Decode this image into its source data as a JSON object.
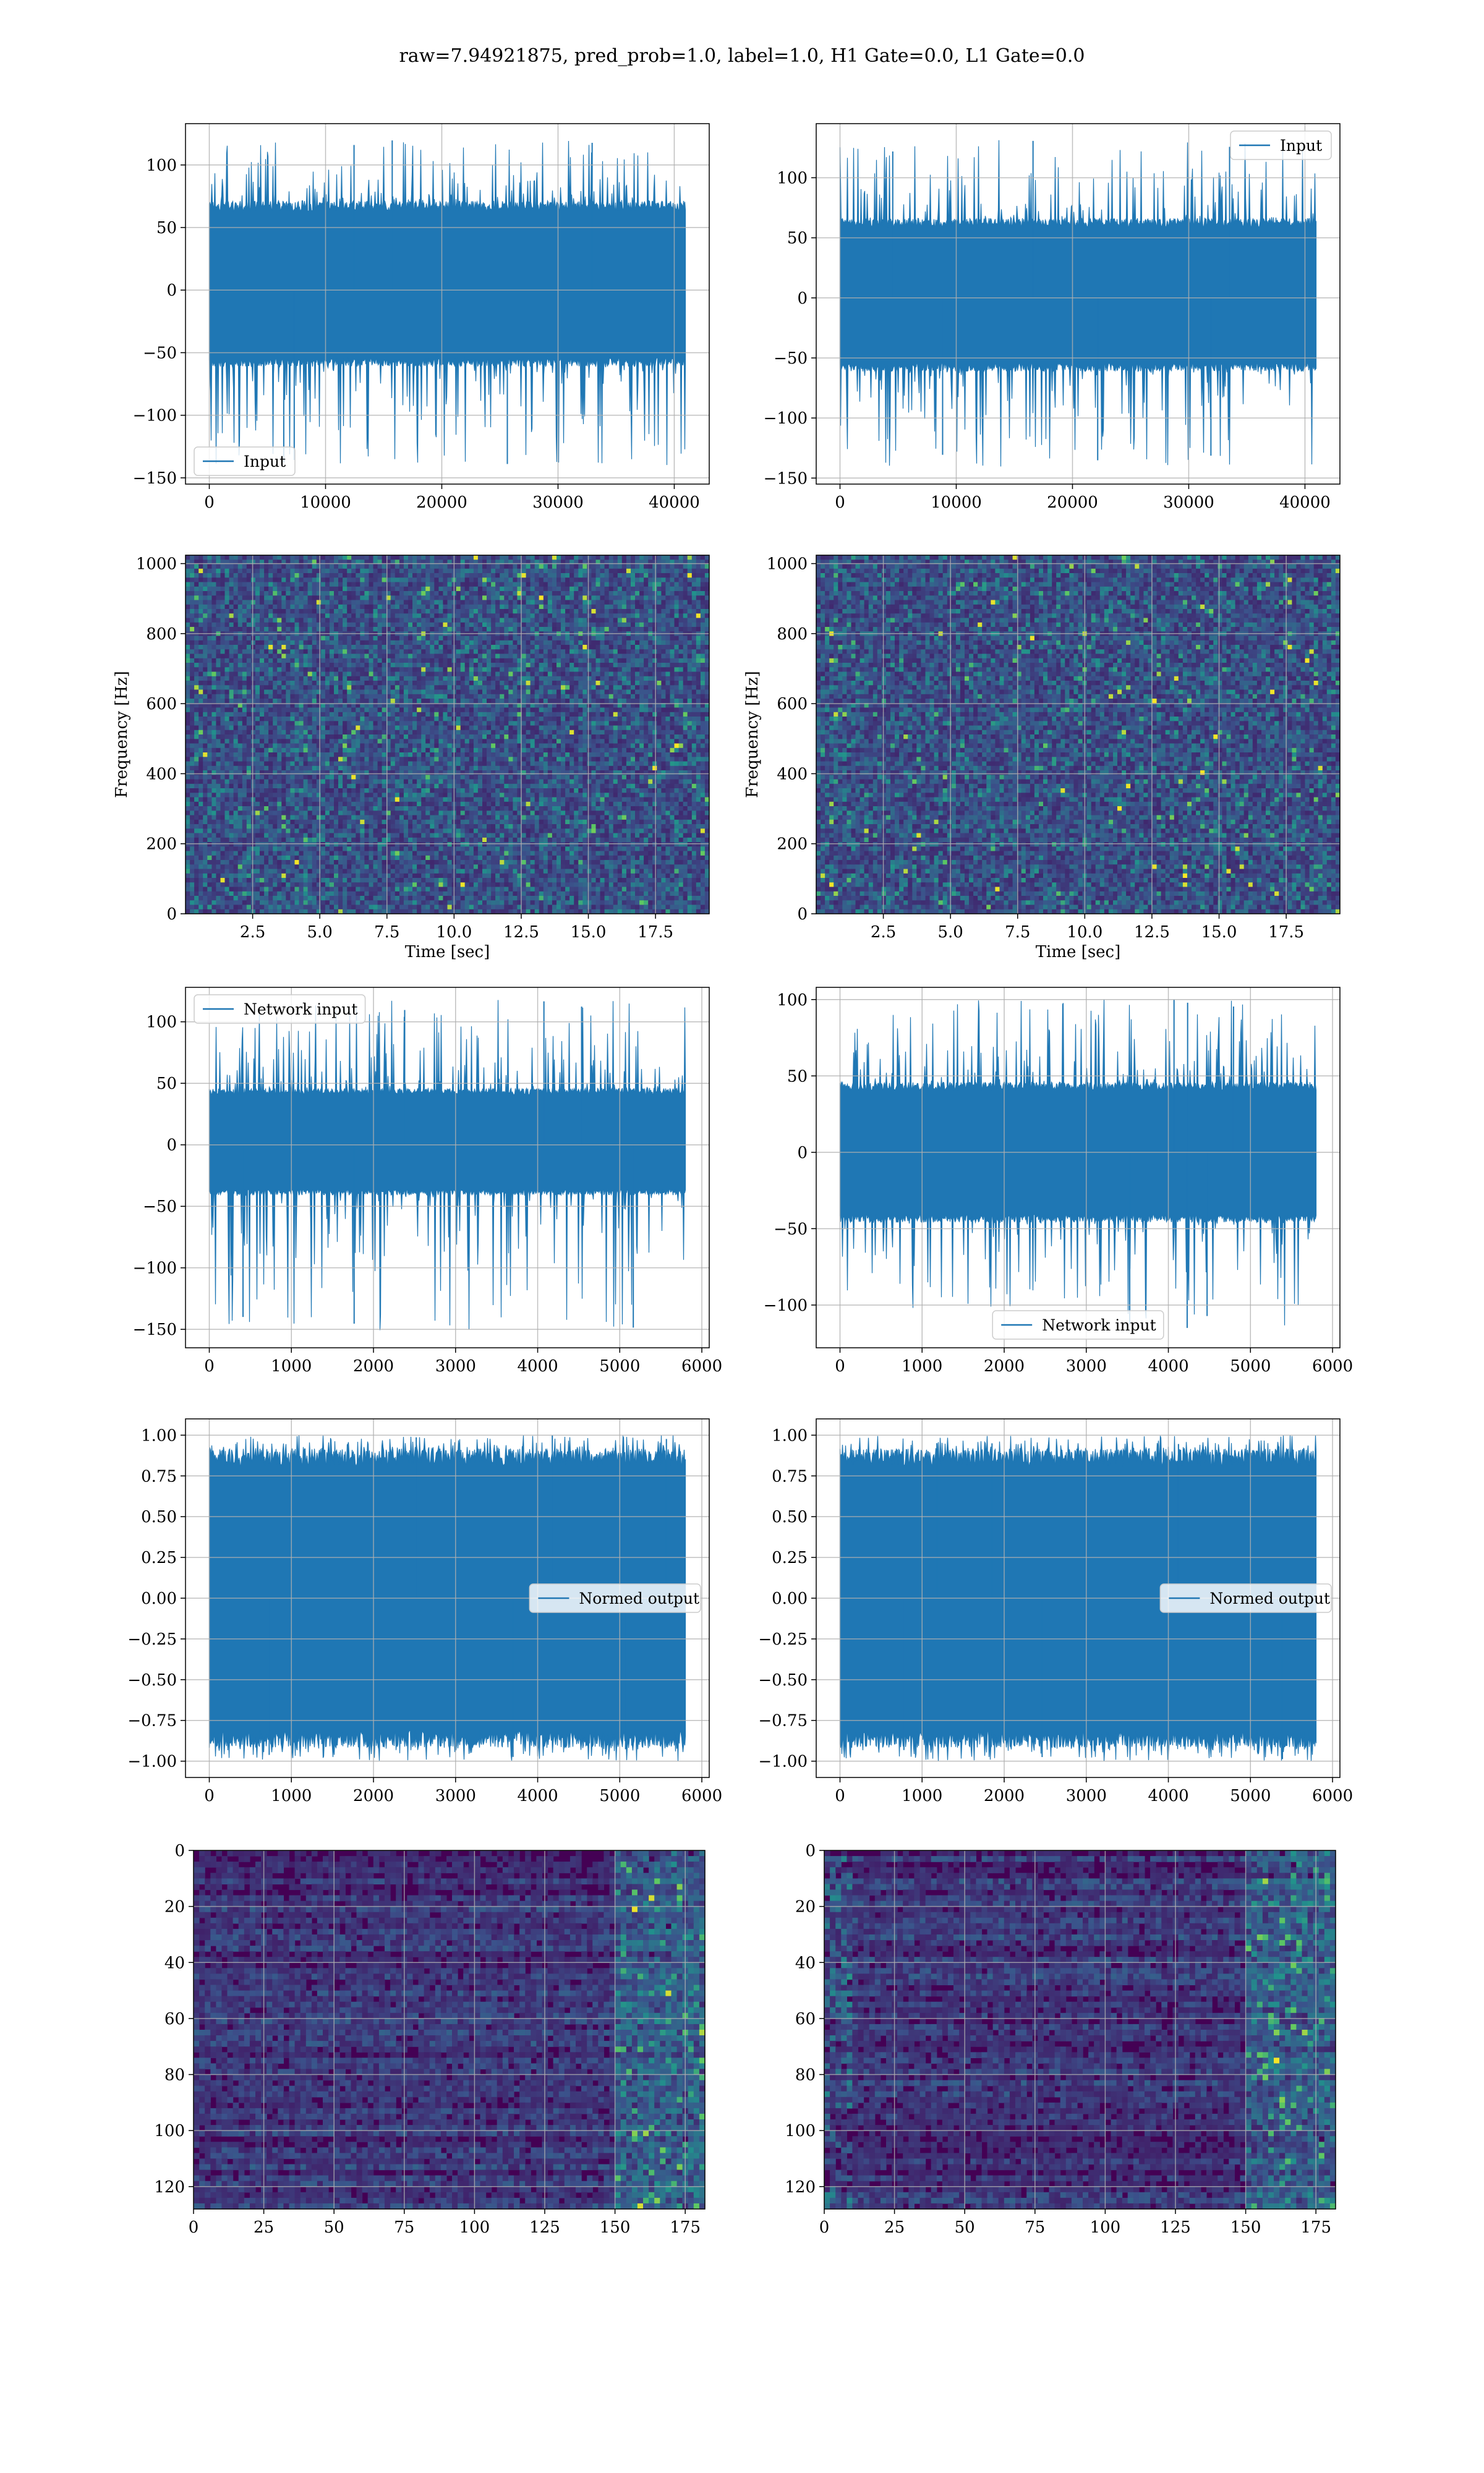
{
  "figure_title": "raw=7.94921875, pred_prob=1.0, label=1.0, H1 Gate=0.0, L1 Gate=0.0",
  "colors": {
    "line": "#1f77b4",
    "grid": "#b0b0b0",
    "viridis_dark": "#440154",
    "viridis_mid": "#3b528b",
    "viridis_teal": "#21918c",
    "viridis_green": "#5ec962",
    "viridis_yellow": "#fde725"
  },
  "chart_data": [
    {
      "id": "p00",
      "type": "line",
      "series": [
        {
          "name": "Input",
          "n": 40960,
          "y_envelope": [
            -140,
            120
          ],
          "y_typical": [
            -60,
            70
          ]
        }
      ],
      "xlim": [
        -2048,
        43008
      ],
      "ylim": [
        -155,
        133
      ],
      "xticks": [
        0,
        10000,
        20000,
        30000,
        40000
      ],
      "yticks": [
        -150,
        -100,
        -50,
        0,
        50,
        100
      ],
      "legend": "lower left",
      "grid": true
    },
    {
      "id": "p01",
      "type": "line",
      "series": [
        {
          "name": "Input",
          "n": 40960,
          "y_envelope": [
            -141,
            132
          ],
          "y_typical": [
            -60,
            65
          ]
        }
      ],
      "xlim": [
        -2048,
        43008
      ],
      "ylim": [
        -155,
        145
      ],
      "xticks": [
        0,
        10000,
        20000,
        30000,
        40000
      ],
      "yticks": [
        -150,
        -100,
        -50,
        0,
        50,
        100
      ],
      "legend": "upper right",
      "grid": true
    },
    {
      "id": "p10",
      "type": "heatmap",
      "xlabel": "Time [sec]",
      "ylabel": "Frequency [Hz]",
      "xlim": [
        0,
        19.5
      ],
      "ylim": [
        0,
        1024
      ],
      "xticks": [
        2.5,
        5.0,
        7.5,
        10.0,
        12.5,
        15.0,
        17.5
      ],
      "yticks": [
        0,
        200,
        400,
        600,
        800,
        1000
      ],
      "colormap": "viridis",
      "grid": true
    },
    {
      "id": "p11",
      "type": "heatmap",
      "xlabel": "Time [sec]",
      "ylabel": "Frequency [Hz]",
      "xlim": [
        0,
        19.5
      ],
      "ylim": [
        0,
        1024
      ],
      "xticks": [
        2.5,
        5.0,
        7.5,
        10.0,
        12.5,
        15.0,
        17.5
      ],
      "yticks": [
        0,
        200,
        400,
        600,
        800,
        1000
      ],
      "colormap": "viridis",
      "grid": true
    },
    {
      "id": "p20",
      "type": "line",
      "series": [
        {
          "name": "Network input",
          "n": 5800,
          "y_envelope": [
            -152,
            118
          ],
          "y_typical": [
            -40,
            45
          ]
        }
      ],
      "xlim": [
        -290,
        6090
      ],
      "ylim": [
        -165,
        128
      ],
      "xticks": [
        0,
        1000,
        2000,
        3000,
        4000,
        5000,
        6000
      ],
      "yticks": [
        -150,
        -100,
        -50,
        0,
        50,
        100
      ],
      "legend": "upper left",
      "grid": true
    },
    {
      "id": "p21",
      "type": "line",
      "series": [
        {
          "name": "Network input",
          "n": 5800,
          "y_envelope": [
            -115,
            100
          ],
          "y_typical": [
            -45,
            45
          ]
        }
      ],
      "xlim": [
        -290,
        6090
      ],
      "ylim": [
        -128,
        108
      ],
      "xticks": [
        0,
        1000,
        2000,
        3000,
        4000,
        5000,
        6000
      ],
      "yticks": [
        -100,
        -50,
        0,
        50,
        100
      ],
      "legend": "lower center",
      "grid": true
    },
    {
      "id": "p30",
      "type": "line",
      "series": [
        {
          "name": "Normed output",
          "n": 5800,
          "y_envelope": [
            -1.0,
            1.0
          ],
          "y_typical": [
            -0.9,
            0.9
          ]
        }
      ],
      "xlim": [
        -290,
        6090
      ],
      "ylim": [
        -1.1,
        1.1
      ],
      "xticks": [
        0,
        1000,
        2000,
        3000,
        4000,
        5000,
        6000
      ],
      "yticks": [
        -1.0,
        -0.75,
        -0.5,
        -0.25,
        0.0,
        0.25,
        0.5,
        0.75,
        1.0
      ],
      "legend": "center right",
      "grid": true
    },
    {
      "id": "p31",
      "type": "line",
      "series": [
        {
          "name": "Normed output",
          "n": 5800,
          "y_envelope": [
            -1.0,
            1.0
          ],
          "y_typical": [
            -0.9,
            0.9
          ]
        }
      ],
      "xlim": [
        -290,
        6090
      ],
      "ylim": [
        -1.1,
        1.1
      ],
      "xticks": [
        0,
        1000,
        2000,
        3000,
        4000,
        5000,
        6000
      ],
      "yticks": [
        -1.0,
        -0.75,
        -0.5,
        -0.25,
        0.0,
        0.25,
        0.5,
        0.75,
        1.0
      ],
      "legend": "center right",
      "grid": true
    },
    {
      "id": "p40",
      "type": "heatmap",
      "xlim": [
        0,
        182
      ],
      "ylim": [
        128,
        0
      ],
      "xticks": [
        0,
        25,
        50,
        75,
        100,
        125,
        150,
        175
      ],
      "yticks": [
        0,
        20,
        40,
        60,
        80,
        100,
        120
      ],
      "colormap": "viridis",
      "grid": true,
      "bright_region_x_from": 150
    },
    {
      "id": "p41",
      "type": "heatmap",
      "xlim": [
        0,
        182
      ],
      "ylim": [
        128,
        0
      ],
      "xticks": [
        0,
        25,
        50,
        75,
        100,
        125,
        150,
        175
      ],
      "yticks": [
        0,
        20,
        40,
        60,
        80,
        100,
        120
      ],
      "colormap": "viridis",
      "grid": true,
      "bright_region_x_from": 150
    }
  ]
}
